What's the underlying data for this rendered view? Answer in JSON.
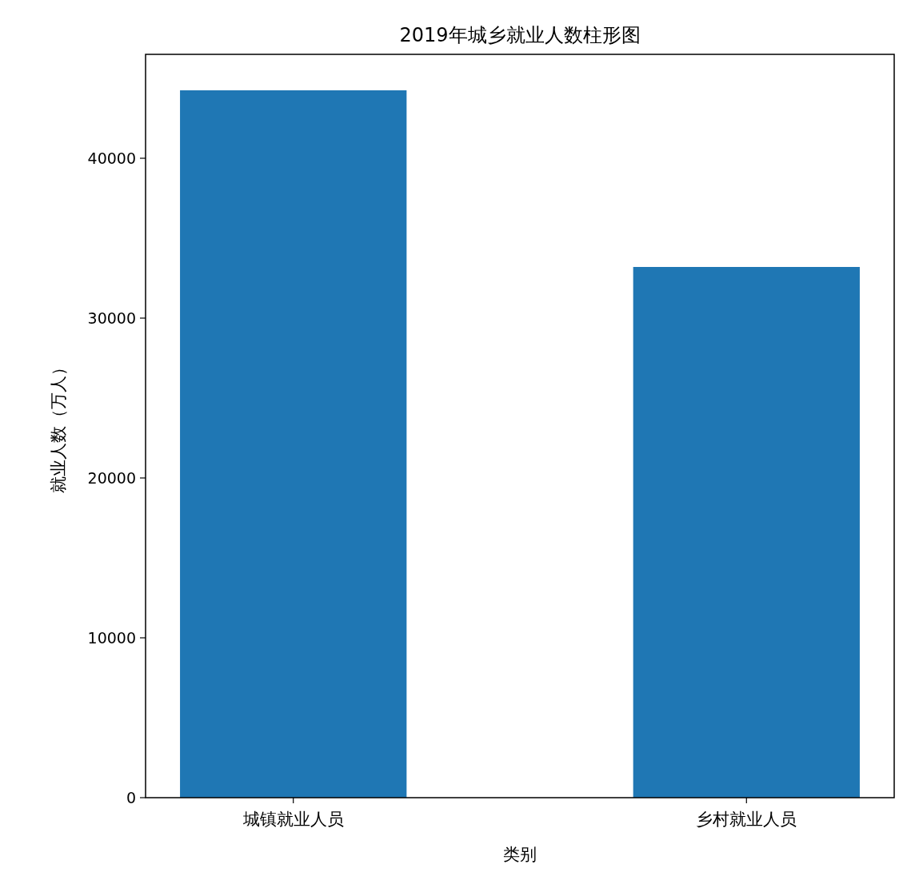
{
  "chart_data": {
    "type": "bar",
    "title": "2019年城乡就业人数柱形图",
    "xlabel": "类别",
    "ylabel": "就业人数（万人）",
    "categories": [
      "城镇就业人员",
      "乡村就业人员"
    ],
    "values": [
      44250,
      33200
    ],
    "color": "#1f77b4",
    "ylim": [
      0,
      46500
    ],
    "yticks": [
      0,
      10000,
      20000,
      30000,
      40000
    ]
  }
}
